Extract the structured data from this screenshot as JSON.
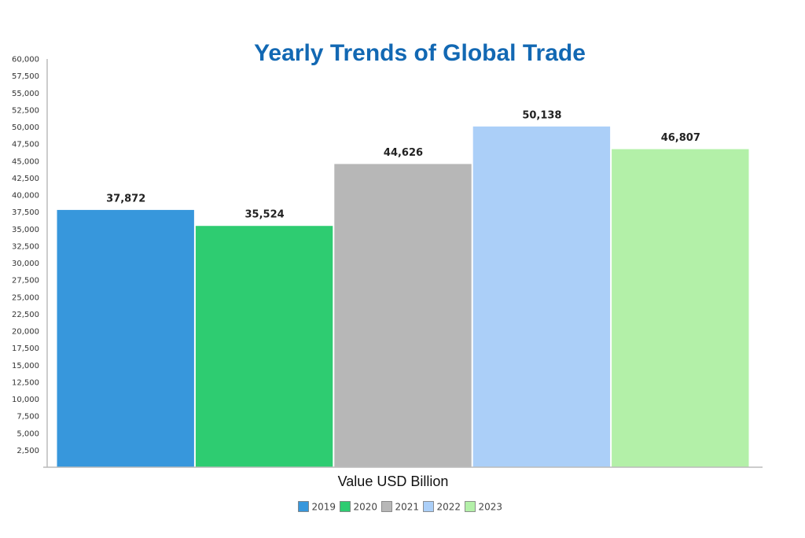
{
  "chart_data": {
    "type": "bar",
    "title": "Yearly Trends of Global Trade",
    "xlabel": "Value USD Billion",
    "ylabel": "",
    "ylim": [
      0,
      60000
    ],
    "ytick_step": 2500,
    "yticks": [
      "2,500",
      "5,000",
      "7,500",
      "10,000",
      "12,500",
      "15,000",
      "17,500",
      "20,000",
      "22,500",
      "25,000",
      "27,500",
      "30,000",
      "32,500",
      "35,000",
      "37,500",
      "40,000",
      "42,500",
      "45,000",
      "47,500",
      "50,000",
      "52,500",
      "55,000",
      "57,500",
      "60,000"
    ],
    "grid": false,
    "legend_position": "bottom-center",
    "series": [
      {
        "name": "2019",
        "value": 37872,
        "label": "37,872",
        "color": "#3797dc"
      },
      {
        "name": "2020",
        "value": 35524,
        "label": "35,524",
        "color": "#2ecc71"
      },
      {
        "name": "2021",
        "value": 44626,
        "label": "44,626",
        "color": "#b7b7b7"
      },
      {
        "name": "2022",
        "value": 50138,
        "label": "50,138",
        "color": "#abcff8"
      },
      {
        "name": "2023",
        "value": 46807,
        "label": "46,807",
        "color": "#b3f0a8"
      }
    ],
    "title_color": "#1268b3"
  }
}
